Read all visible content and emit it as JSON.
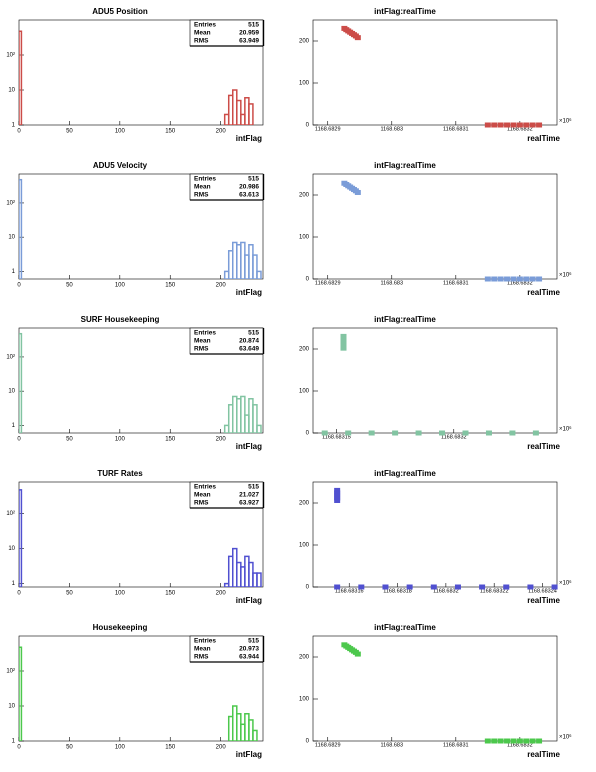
{
  "chart_data": [
    {
      "type": "histogram",
      "title": "ADU5 Position",
      "xlabel": "intFlag",
      "color": "#cc4c48",
      "stats": {
        "labels": [
          "Entries",
          "Mean",
          "RMS"
        ],
        "values": [
          515,
          20.959,
          63.949
        ]
      },
      "bins": [
        0,
        2.4,
        204,
        208,
        212,
        216,
        220,
        224,
        228,
        232,
        236,
        240,
        242
      ],
      "counts": [
        477,
        0,
        2,
        7,
        10,
        5,
        2,
        6,
        4,
        1,
        1,
        0
      ],
      "xlim": [
        0,
        242
      ],
      "xticks": [
        0,
        50,
        100,
        150,
        200
      ],
      "log_y": true,
      "ylim": [
        1,
        1000
      ],
      "yticks": [
        1,
        10,
        {
          "value": 100,
          "label": "10²"
        }
      ]
    },
    {
      "type": "scatter",
      "title": "intFlag:realTime",
      "xlabel": "realTime",
      "x_exponent": "×10⁶",
      "color": "#cc4c48",
      "x": [
        1168.682926,
        1168.682929,
        1168.682932,
        1168.682935,
        1168.682938,
        1168.682941,
        1168.682944,
        1168.682947,
        1168.68315,
        1168.68316,
        1168.68317,
        1168.68318,
        1168.68319,
        1168.6832,
        1168.68321,
        1168.68322,
        1168.68323
      ],
      "y": [
        230,
        227,
        224,
        221,
        218,
        215,
        212,
        208,
        0,
        0,
        0,
        0,
        0,
        0,
        0,
        0,
        0
      ],
      "xlim": [
        1168.682877,
        1168.683258
      ],
      "xticks": [
        1168.6829,
        1168.683,
        1168.6831,
        1168.6832
      ],
      "ylim": [
        0,
        250
      ],
      "yticks": [
        0,
        100,
        200
      ]
    },
    {
      "type": "histogram",
      "title": "ADU5 Velocity",
      "xlabel": "intFlag",
      "color": "#7a9cd8",
      "stats": {
        "labels": [
          "Entries",
          "Mean",
          "RMS"
        ],
        "values": [
          515,
          20.986,
          63.613
        ]
      },
      "bins": [
        0,
        2.4,
        204,
        208,
        212,
        216,
        220,
        224,
        228,
        232,
        236,
        240,
        242
      ],
      "counts": [
        477,
        0,
        1,
        4,
        7,
        6,
        7,
        3,
        6,
        3,
        1,
        0
      ],
      "xlim": [
        0,
        242
      ],
      "xticks": [
        0,
        50,
        100,
        150,
        200
      ],
      "log_y": true,
      "ylim": [
        0.6,
        700
      ],
      "yticks": [
        1,
        10,
        {
          "value": 100,
          "label": "10²"
        }
      ]
    },
    {
      "type": "scatter",
      "title": "intFlag:realTime",
      "xlabel": "realTime",
      "x_exponent": "×10⁶",
      "color": "#7a9cd8",
      "x": [
        1168.682926,
        1168.682929,
        1168.682932,
        1168.682935,
        1168.682938,
        1168.682941,
        1168.682944,
        1168.682947,
        1168.68315,
        1168.68316,
        1168.68317,
        1168.68318,
        1168.68319,
        1168.6832,
        1168.68321,
        1168.68322,
        1168.68323
      ],
      "y": [
        228,
        225,
        222,
        219,
        216,
        213,
        210,
        206,
        0,
        0,
        0,
        0,
        0,
        0,
        0,
        0,
        0
      ],
      "xlim": [
        1168.682877,
        1168.683258
      ],
      "xticks": [
        1168.6829,
        1168.683,
        1168.6831,
        1168.6832
      ],
      "ylim": [
        0,
        250
      ],
      "yticks": [
        0,
        100,
        200
      ]
    },
    {
      "type": "histogram",
      "title": "SURF Housekeeping",
      "xlabel": "intFlag",
      "color": "#82c4a2",
      "stats": {
        "labels": [
          "Entries",
          "Mean",
          "RMS"
        ],
        "values": [
          515,
          20.874,
          63.649
        ]
      },
      "bins": [
        0,
        2.4,
        204,
        208,
        212,
        216,
        220,
        224,
        228,
        232,
        236,
        240,
        242
      ],
      "counts": [
        477,
        0,
        1,
        4,
        7,
        6,
        7,
        2,
        6,
        4,
        1,
        0
      ],
      "xlim": [
        0,
        242
      ],
      "xticks": [
        0,
        50,
        100,
        150,
        200
      ],
      "log_y": true,
      "ylim": [
        0.6,
        700
      ],
      "yticks": [
        1,
        10,
        {
          "value": 100,
          "label": "10²"
        }
      ]
    },
    {
      "type": "scatter",
      "title": "intFlag:realTime",
      "xlabel": "realTime",
      "x_exponent": "×10⁶",
      "color": "#82c4a2",
      "x": [
        1168.683153,
        1168.683153,
        1168.683153,
        1168.683153,
        1168.683153,
        1168.683153,
        1168.683145,
        1168.683155,
        1168.683165,
        1168.683175,
        1168.683185,
        1168.683195,
        1168.683205,
        1168.683215,
        1168.683225,
        1168.683235
      ],
      "y": [
        202,
        208,
        214,
        220,
        226,
        230,
        0,
        0,
        0,
        0,
        0,
        0,
        0,
        0,
        0,
        0
      ],
      "xlim": [
        1168.68314,
        1168.683244
      ],
      "xticks": [
        1168.68315,
        1168.6832
      ],
      "ylim": [
        0,
        250
      ],
      "yticks": [
        0,
        100,
        200
      ]
    },
    {
      "type": "histogram",
      "title": "TURF Rates",
      "xlabel": "intFlag",
      "color": "#5050d0",
      "stats": {
        "labels": [
          "Entries",
          "Mean",
          "RMS"
        ],
        "values": [
          515,
          21.027,
          63.927
        ]
      },
      "bins": [
        0,
        2.4,
        204,
        208,
        212,
        216,
        220,
        224,
        228,
        232,
        236,
        240,
        242
      ],
      "counts": [
        477,
        0,
        1,
        6,
        10,
        4,
        3,
        6,
        4,
        2,
        2,
        0
      ],
      "xlim": [
        0,
        242
      ],
      "xticks": [
        0,
        50,
        100,
        150,
        200
      ],
      "log_y": true,
      "ylim": [
        0.8,
        800
      ],
      "yticks": [
        1,
        10,
        {
          "value": 100,
          "label": "10²"
        }
      ]
    },
    {
      "type": "scatter",
      "title": "intFlag:realTime",
      "xlabel": "realTime",
      "x_exponent": "×10⁶",
      "color": "#5050d0",
      "x": [
        1168.683155,
        1168.683155,
        1168.683155,
        1168.683155,
        1168.683155,
        1168.683155,
        1168.683165,
        1168.683175,
        1168.683185,
        1168.683195,
        1168.683205,
        1168.683215,
        1168.683225,
        1168.683235,
        1168.683245
      ],
      "y": [
        206,
        212,
        218,
        224,
        230,
        0,
        0,
        0,
        0,
        0,
        0,
        0,
        0,
        0,
        0
      ],
      "xlim": [
        1168.683145,
        1168.683246
      ],
      "xticks": [
        1168.68316,
        1168.68318,
        1168.6832,
        1168.68322,
        1168.68324
      ],
      "ylim": [
        0,
        250
      ],
      "yticks": [
        0,
        100,
        200
      ]
    },
    {
      "type": "histogram",
      "title": "Housekeeping",
      "xlabel": "intFlag",
      "color": "#4cc84c",
      "stats": {
        "labels": [
          "Entries",
          "Mean",
          "RMS"
        ],
        "values": [
          515,
          20.973,
          63.944
        ]
      },
      "bins": [
        0,
        2.4,
        204,
        208,
        212,
        216,
        220,
        224,
        228,
        232,
        236,
        240,
        242
      ],
      "counts": [
        477,
        0,
        1,
        5,
        10,
        6,
        3,
        6,
        4,
        2,
        1,
        0
      ],
      "xlim": [
        0,
        242
      ],
      "xticks": [
        0,
        50,
        100,
        150,
        200
      ],
      "log_y": true,
      "ylim": [
        1,
        1000
      ],
      "yticks": [
        1,
        10,
        {
          "value": 100,
          "label": "10²"
        }
      ]
    },
    {
      "type": "scatter",
      "title": "intFlag:realTime",
      "xlabel": "realTime",
      "x_exponent": "×10⁶",
      "color": "#4cc84c",
      "x": [
        1168.682926,
        1168.682929,
        1168.682932,
        1168.682935,
        1168.682938,
        1168.682941,
        1168.682944,
        1168.682947,
        1168.68315,
        1168.68316,
        1168.68317,
        1168.68318,
        1168.68319,
        1168.6832,
        1168.68321,
        1168.68322,
        1168.68323
      ],
      "y": [
        229,
        226,
        223,
        220,
        217,
        214,
        211,
        207,
        0,
        0,
        0,
        0,
        0,
        0,
        0,
        0,
        0
      ],
      "xlim": [
        1168.682877,
        1168.683258
      ],
      "xticks": [
        1168.6829,
        1168.683,
        1168.6831,
        1168.6832
      ],
      "ylim": [
        0,
        250
      ],
      "yticks": [
        0,
        100,
        200
      ]
    }
  ]
}
